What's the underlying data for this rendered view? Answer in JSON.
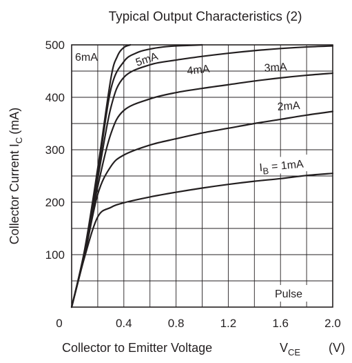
{
  "chart_data": {
    "type": "line",
    "title": "Typical Output Characteristics (2)",
    "xlabel": {
      "text": "Collector to Emitter Voltage",
      "symbol": "V",
      "sub": "CE",
      "unit": "(V)"
    },
    "ylabel": {
      "text": "Collector Current",
      "symbol": "I",
      "sub": "C",
      "unit": "(mA)"
    },
    "xlim": [
      0,
      2.0
    ],
    "ylim": [
      0,
      500
    ],
    "x_ticks": [
      "0",
      "0.4",
      "0.8",
      "1.2",
      "1.6",
      "2.0"
    ],
    "y_ticks": [
      "100",
      "200",
      "300",
      "400",
      "500"
    ],
    "x_tick_values": [
      0,
      0.4,
      0.8,
      1.2,
      1.6,
      2.0
    ],
    "y_tick_values": [
      100,
      200,
      300,
      400,
      500
    ],
    "x_gridlines": [
      0.2,
      0.4,
      0.6,
      0.8,
      1.0,
      1.2,
      1.4,
      1.6,
      1.8
    ],
    "y_gridlines": [
      50,
      100,
      150,
      200,
      250,
      300,
      350,
      400,
      450
    ],
    "grid": true,
    "annotation": "Pulse",
    "series": [
      {
        "name": "IB = 1mA",
        "label_parts": [
          "I",
          "B",
          " = 1mA"
        ],
        "x": [
          0,
          0.1,
          0.2,
          0.3,
          0.4,
          0.6,
          0.8,
          1.0,
          1.2,
          1.4,
          1.6,
          1.8,
          2.0
        ],
        "y": [
          0,
          96,
          172,
          190,
          199,
          210,
          219,
          227,
          234,
          240,
          245,
          251,
          255
        ]
      },
      {
        "name": "2mA",
        "label_parts": [
          "2mA"
        ],
        "x": [
          0,
          0.1,
          0.2,
          0.3,
          0.4,
          0.6,
          0.8,
          1.0,
          1.2,
          1.4,
          1.6,
          1.8,
          2.0
        ],
        "y": [
          0,
          100,
          215,
          268,
          290,
          309,
          321,
          332,
          341,
          350,
          358,
          366,
          373
        ]
      },
      {
        "name": "3mA",
        "label_parts": [
          "3mA"
        ],
        "x": [
          0,
          0.1,
          0.2,
          0.3,
          0.4,
          0.6,
          0.8,
          1.0,
          1.2,
          1.4,
          1.6,
          1.8,
          2.0
        ],
        "y": [
          0,
          103,
          230,
          330,
          375,
          397,
          409,
          417,
          424,
          431,
          437,
          442,
          446
        ]
      },
      {
        "name": "4mA",
        "label_parts": [
          "4mA"
        ],
        "x": [
          0,
          0.1,
          0.2,
          0.3,
          0.4,
          0.6,
          0.8,
          1.0,
          1.2,
          1.4,
          1.6,
          1.8,
          2.0
        ],
        "y": [
          0,
          106,
          245,
          380,
          438,
          462,
          471,
          478,
          484,
          489,
          493,
          496,
          498
        ]
      },
      {
        "name": "5mA",
        "label_parts": [
          "5mA"
        ],
        "x": [
          0,
          0.1,
          0.2,
          0.3,
          0.4,
          0.5,
          0.6,
          0.7,
          0.8,
          0.9,
          1.0
        ],
        "y": [
          0,
          108,
          255,
          415,
          468,
          485,
          492,
          496,
          498,
          499,
          500
        ]
      },
      {
        "name": "6mA",
        "label_parts": [
          "6mA"
        ],
        "x": [
          0,
          0.1,
          0.2,
          0.3,
          0.35,
          0.4,
          0.45
        ],
        "y": [
          0,
          110,
          265,
          435,
          478,
          495,
          500
        ]
      }
    ]
  }
}
